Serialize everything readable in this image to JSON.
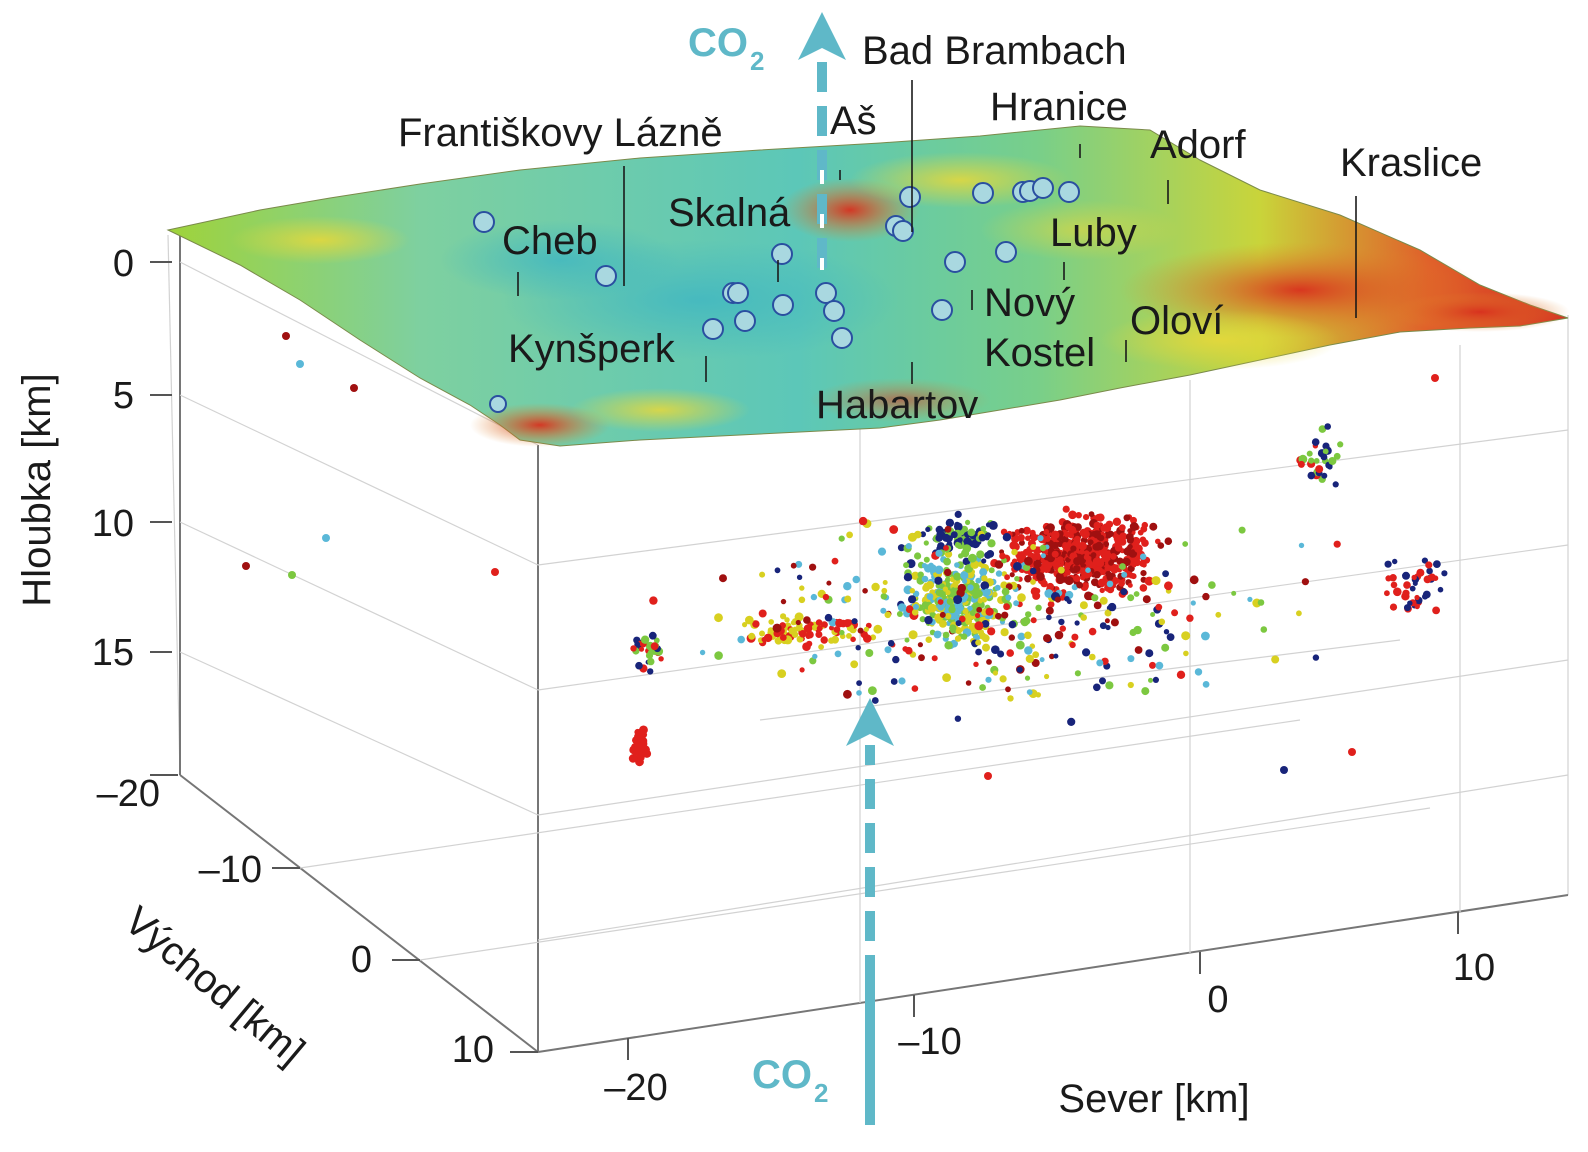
{
  "places": {
    "bad_brambach": "Bad Brambach",
    "hranice": "Hranice",
    "frantiskovy_lazne": "Františkovy Lázně",
    "as": "Aš",
    "adorf": "Adorf",
    "kraslice": "Kraslice",
    "skalna": "Skalná",
    "cheb": "Cheb",
    "luby": "Luby",
    "novy_kostel_1": "Nový",
    "novy_kostel_2": "Kostel",
    "olovi": "Oloví",
    "kynsperk": "Kynšperk",
    "habartov": "Habartov"
  },
  "co2": {
    "main": "CO",
    "sub": "2"
  },
  "axes": {
    "depth_label": "Hloubka [km]",
    "depth_ticks": [
      "0",
      "5",
      "10",
      "15",
      "–20"
    ],
    "east_label": "Východ [km]",
    "east_ticks": [
      "–10",
      "0",
      "10"
    ],
    "north_label": "Sever [km]",
    "north_ticks": [
      "–20",
      "–10",
      "0",
      "10"
    ]
  },
  "colors": {
    "co2_arrow": "#5fb8c8",
    "station": "#a9d8e0",
    "station_edge": "#2a4fa0",
    "quake_red": "#e0201c",
    "quake_darkred": "#a01010",
    "quake_green": "#7cc840",
    "quake_yellow": "#d8d020",
    "quake_blue": "#18247a",
    "quake_cyan": "#5ab8d8"
  }
}
